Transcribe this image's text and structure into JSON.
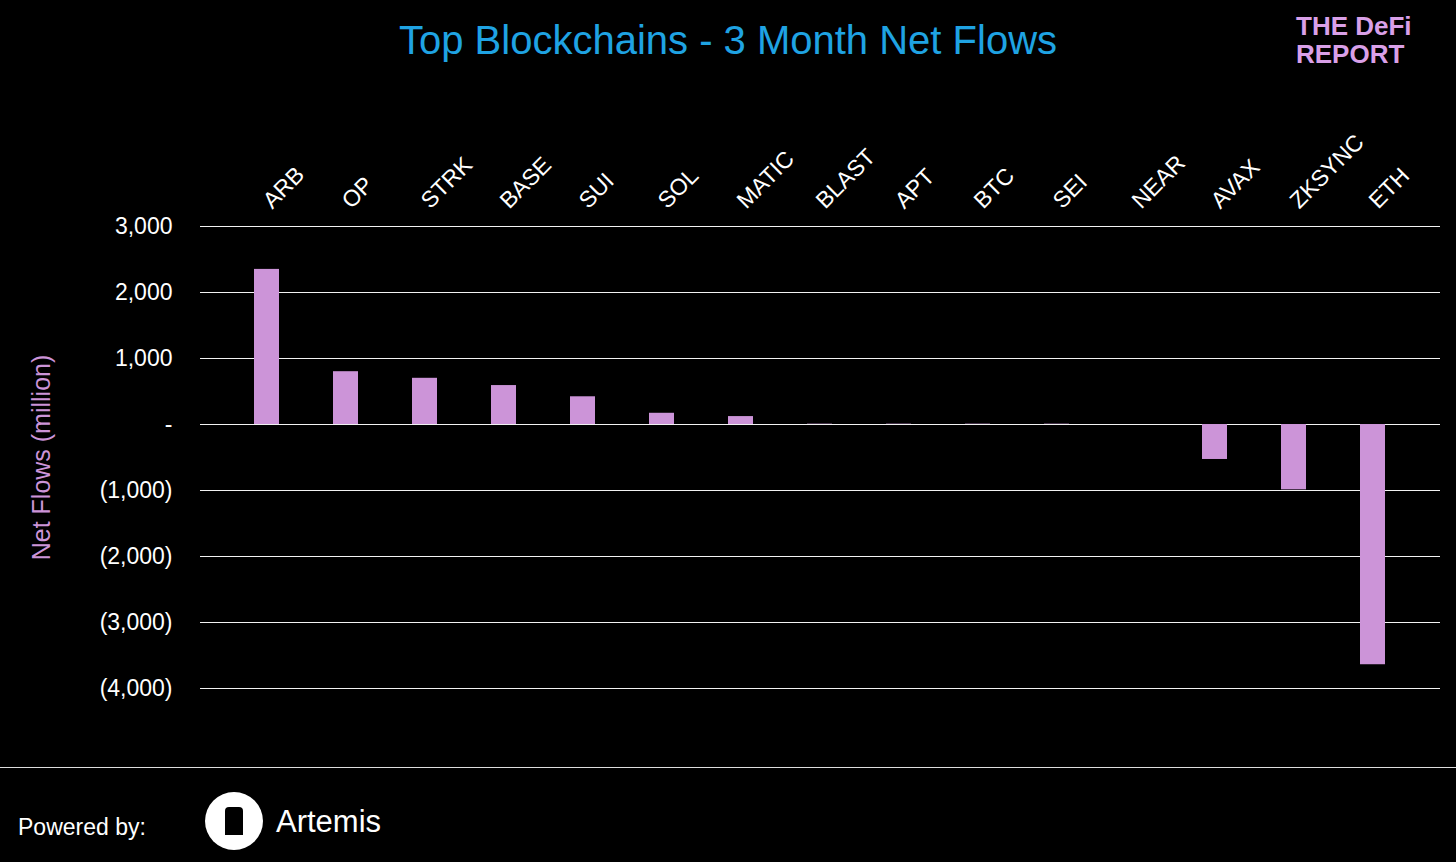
{
  "chart_data": {
    "type": "bar",
    "title": "Top Blockchains - 3 Month Net Flows",
    "logo": [
      "THE DeFi",
      "REPORT"
    ],
    "y_label": "Net Flows (million)",
    "footer": "Powered by:",
    "source": "Artemis",
    "categories": [
      "ARB",
      "OP",
      "STRK",
      "BASE",
      "SUI",
      "SOL",
      "MATIC",
      "BLAST",
      "APT",
      "BTC",
      "SEI",
      "NEAR",
      "AVAX",
      "ZKSYNC",
      "ETH"
    ],
    "values": [
      2350,
      800,
      700,
      590,
      420,
      170,
      120,
      5,
      5,
      5,
      5,
      0,
      -530,
      -990,
      -3640
    ],
    "color": "#cc94d8",
    "ylim": [
      -4000,
      3000
    ],
    "yticks": [
      {
        "value": -4000,
        "label": "(4,000)"
      },
      {
        "value": -3000,
        "label": "(3,000)"
      },
      {
        "value": -2000,
        "label": "(2,000)"
      },
      {
        "value": -1000,
        "label": "(1,000)"
      },
      {
        "value": 0,
        "label": "-"
      },
      {
        "value": 1000,
        "label": "1,000"
      },
      {
        "value": 2000,
        "label": "2,000"
      },
      {
        "value": 3000,
        "label": "3,000"
      }
    ],
    "grid": true
  }
}
